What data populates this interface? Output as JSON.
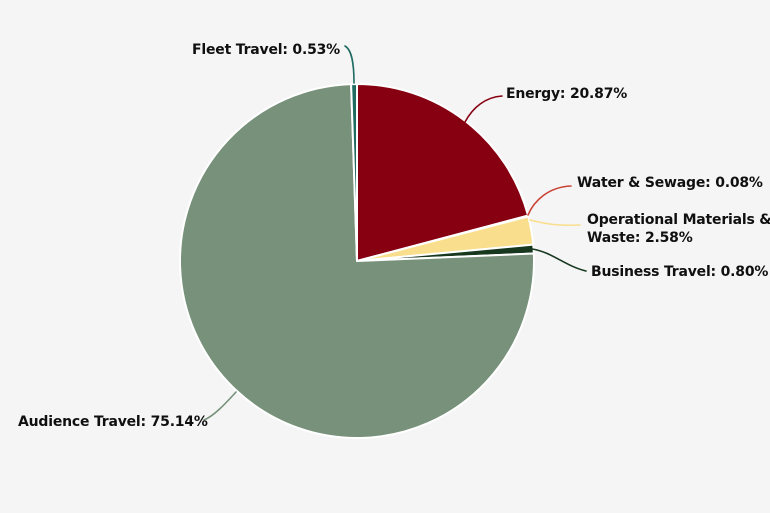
{
  "chart_data": {
    "type": "pie",
    "title": "",
    "unit": "%",
    "legend": "none",
    "labels_style": "callouts-with-leader-lines",
    "background_color": "#F5F5F6",
    "separator_color": "#FFFFFF",
    "center": [
      357,
      261
    ],
    "radius": 177,
    "start_angle": "12-oclock-clockwise",
    "segments": [
      {
        "id": "energy",
        "label": "Energy",
        "value": 20.87,
        "color": "#870011",
        "callout": "Energy: 20.87%"
      },
      {
        "id": "water-sewage",
        "label": "Water & Sewage",
        "value": 0.08,
        "color": "#C94434",
        "callout": "Water & Sewage: 0.08%"
      },
      {
        "id": "operational-materials-waste",
        "label": "Operational Materials & Waste",
        "value": 2.58,
        "color": "#F9DF8D",
        "callout": "Operational Materials & Waste: 2.58%"
      },
      {
        "id": "business-travel",
        "label": "Business Travel",
        "value": 0.8,
        "color": "#17381E",
        "callout": "Business Travel: 0.80%"
      },
      {
        "id": "audience-travel",
        "label": "Audience Travel",
        "value": 75.14,
        "color": "#78917B",
        "callout": "Audience Travel: 75.14%"
      },
      {
        "id": "fleet-travel",
        "label": "Fleet Travel",
        "value": 0.53,
        "color": "#206B62",
        "callout": "Fleet Travel: 0.53%"
      }
    ]
  }
}
